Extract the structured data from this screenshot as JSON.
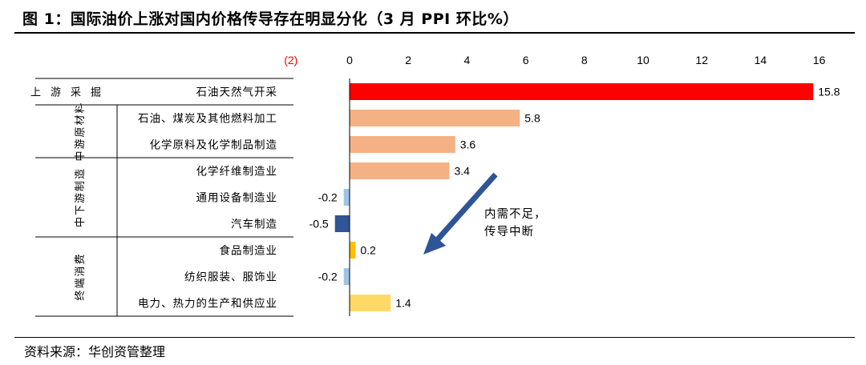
{
  "title": "图 1：国际油价上涨对国内价格传导存在明显分化（3 月 PPI 环比%）",
  "source": "资料来源：华创资管整理",
  "chart_data": {
    "type": "bar",
    "orientation": "horizontal",
    "x_ticks": [
      "(2)",
      "0",
      "2",
      "4",
      "6",
      "8",
      "10",
      "12",
      "14",
      "16"
    ],
    "x_tick_values": [
      -2,
      0,
      2,
      4,
      6,
      8,
      10,
      12,
      14,
      16
    ],
    "xlim": [
      -2,
      16
    ],
    "negative_tick_color": "#ff0000",
    "grid": false,
    "categories": [
      "石油天然气开采",
      "石油、煤炭及其他燃料加工",
      "化学原料及化学制品制造",
      "化学纤维制造业",
      "通用设备制造业",
      "汽车制造",
      "食品制造业",
      "纺织服装、服饰业",
      "电力、热力的生产和供应业"
    ],
    "values": [
      15.8,
      5.8,
      3.6,
      3.4,
      -0.2,
      -0.5,
      0.2,
      -0.2,
      1.4
    ],
    "value_labels": [
      "15.8",
      "5.8",
      "3.6",
      "3.4",
      "-0.2",
      "-0.5",
      "0.2",
      "-0.2",
      "1.4"
    ],
    "bar_colors": [
      "#ff0000",
      "#f4b183",
      "#f4b183",
      "#f4b183",
      "#9dc3e6",
      "#2f5597",
      "#ffc000",
      "#9dc3e6",
      "#ffd966"
    ],
    "groups": [
      {
        "label": "上游采掘",
        "start": 0,
        "end": 0,
        "vertical": false
      },
      {
        "label": "中游原材料",
        "start": 1,
        "end": 2,
        "vertical": true
      },
      {
        "label": "中下游制造",
        "start": 3,
        "end": 5,
        "vertical": true
      },
      {
        "label": "终端消费",
        "start": 6,
        "end": 8,
        "vertical": true
      }
    ],
    "annotation": {
      "lines": [
        "内需不足，",
        "传导中断"
      ],
      "arrow_color": "#2f5597"
    }
  }
}
